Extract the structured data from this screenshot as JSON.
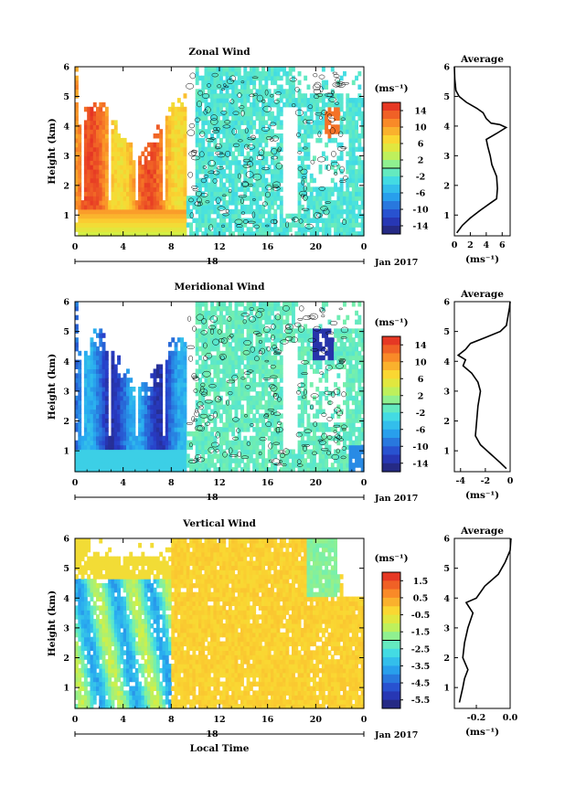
{
  "figure": {
    "xlabel": "Local Time",
    "date_label": "Jan 2017",
    "date_tick": "18",
    "ylabel": "Height (km)",
    "unit_label": "(ms⁻¹)",
    "average_title": "Average"
  },
  "chart_data": [
    {
      "type": "heatmap",
      "title": "Zonal Wind",
      "xlabel": "Local Time",
      "ylabel": "Height (km)",
      "x_ticks": [
        "0",
        "4",
        "8",
        "12",
        "16",
        "20",
        "0"
      ],
      "xlim": [
        0,
        24
      ],
      "ylim": [
        0.3,
        6
      ],
      "y_ticks": [
        "1",
        "2",
        "3",
        "4",
        "5",
        "6"
      ],
      "colorbar": {
        "label": "(ms⁻¹)",
        "range": [
          -16,
          16
        ],
        "ticks": [
          "14",
          "10",
          "6",
          "2",
          "-2",
          "-6",
          "-10",
          "-14"
        ]
      },
      "profile": {
        "title": "Average",
        "xlabel": "(ms⁻¹)",
        "x_ticks": [
          "0",
          "2",
          "4",
          "6"
        ],
        "xlim": [
          0,
          7
        ],
        "points": [
          [
            0.3,
            0.4
          ],
          [
            1.0,
            0.65
          ],
          [
            2.0,
            0.9
          ],
          [
            3.2,
            1.15
          ],
          [
            4.5,
            1.4
          ],
          [
            5.3,
            1.55
          ],
          [
            5.4,
            1.9
          ],
          [
            5.3,
            2.3
          ],
          [
            4.7,
            2.7
          ],
          [
            4.5,
            3.0
          ],
          [
            4.2,
            3.3
          ],
          [
            4.0,
            3.55
          ],
          [
            5.3,
            3.75
          ],
          [
            6.5,
            3.95
          ],
          [
            5.7,
            4.05
          ],
          [
            4.6,
            4.1
          ],
          [
            4.0,
            4.25
          ],
          [
            3.6,
            4.45
          ],
          [
            2.8,
            4.6
          ],
          [
            1.5,
            4.8
          ],
          [
            0.6,
            5.0
          ],
          [
            0.2,
            5.2
          ],
          [
            0.05,
            5.6
          ],
          [
            0,
            6.0
          ]
        ]
      }
    },
    {
      "type": "heatmap",
      "title": "Meridional Wind",
      "xlabel": "Local Time",
      "ylabel": "Height (km)",
      "x_ticks": [
        "0",
        "4",
        "8",
        "12",
        "16",
        "20",
        "0"
      ],
      "xlim": [
        0,
        24
      ],
      "ylim": [
        0.3,
        6
      ],
      "y_ticks": [
        "1",
        "2",
        "3",
        "4",
        "5",
        "6"
      ],
      "colorbar": {
        "label": "(ms⁻¹)",
        "range": [
          -16,
          16
        ],
        "ticks": [
          "14",
          "10",
          "6",
          "2",
          "-2",
          "-6",
          "-10",
          "-14"
        ]
      },
      "profile": {
        "title": "Average",
        "xlabel": "(ms⁻¹)",
        "x_ticks": [
          "-4",
          "-2",
          "0"
        ],
        "xlim": [
          -4.5,
          0
        ],
        "points": [
          [
            -0.3,
            0.4
          ],
          [
            -0.8,
            0.6
          ],
          [
            -1.6,
            0.9
          ],
          [
            -2.4,
            1.2
          ],
          [
            -2.8,
            1.5
          ],
          [
            -2.7,
            2.0
          ],
          [
            -2.6,
            2.5
          ],
          [
            -2.4,
            3.0
          ],
          [
            -2.6,
            3.3
          ],
          [
            -3.1,
            3.6
          ],
          [
            -3.8,
            3.85
          ],
          [
            -3.6,
            4.05
          ],
          [
            -4.2,
            4.2
          ],
          [
            -3.6,
            4.4
          ],
          [
            -3.2,
            4.6
          ],
          [
            -2.0,
            4.8
          ],
          [
            -0.8,
            5.0
          ],
          [
            -0.3,
            5.2
          ],
          [
            -0.05,
            5.8
          ],
          [
            0,
            6.0
          ]
        ]
      }
    },
    {
      "type": "heatmap",
      "title": "Vertical Wind",
      "xlabel": "Local Time",
      "ylabel": "Height (km)",
      "x_ticks": [
        "0",
        "4",
        "8",
        "12",
        "16",
        "20",
        "0"
      ],
      "xlim": [
        0,
        24
      ],
      "ylim": [
        0.3,
        6
      ],
      "y_ticks": [
        "1",
        "2",
        "3",
        "4",
        "5",
        "6"
      ],
      "colorbar": {
        "label": "(ms⁻¹)",
        "range": [
          -6,
          2
        ],
        "ticks": [
          "1.5",
          "0.5",
          "-0.5",
          "-1.5",
          "-2.5",
          "-3.5",
          "-4.5",
          "-5.5"
        ]
      },
      "profile": {
        "title": "Average",
        "xlabel": "(ms⁻¹)",
        "x_ticks": [
          "-0.2",
          "0.0"
        ],
        "xlim": [
          -0.33,
          0
        ],
        "points": [
          [
            -0.3,
            0.5
          ],
          [
            -0.28,
            1.0
          ],
          [
            -0.27,
            1.3
          ],
          [
            -0.25,
            1.6
          ],
          [
            -0.28,
            2.0
          ],
          [
            -0.27,
            2.5
          ],
          [
            -0.25,
            3.0
          ],
          [
            -0.22,
            3.5
          ],
          [
            -0.26,
            3.85
          ],
          [
            -0.2,
            4.0
          ],
          [
            -0.15,
            4.4
          ],
          [
            -0.07,
            4.8
          ],
          [
            -0.03,
            5.2
          ],
          [
            0,
            5.6
          ],
          [
            0.005,
            6.0
          ]
        ]
      }
    }
  ]
}
